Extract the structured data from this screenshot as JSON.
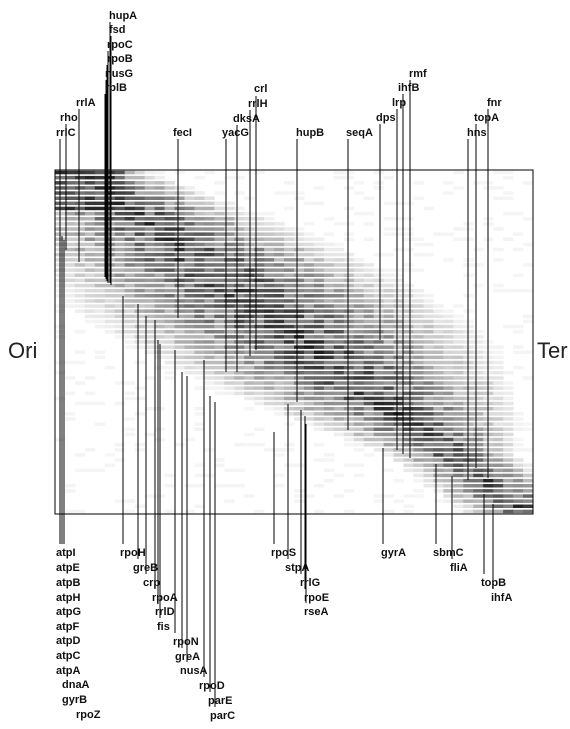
{
  "side_labels": {
    "left": "Ori",
    "right": "Ter"
  },
  "top_genes": [
    "hupA",
    "fsd",
    "rpoC",
    "rpoB",
    "nusG",
    "rplB",
    "rrlA",
    "rho",
    "rrlC",
    "fecI",
    "crl",
    "rrlH",
    "dksA",
    "yacG",
    "hupB",
    "seqA",
    "rmf",
    "ihfB",
    "lrp",
    "dps",
    "fnr",
    "topA",
    "hns"
  ],
  "bottom_genes": [
    "atpI",
    "atpE",
    "atpB",
    "atpH",
    "atpG",
    "atpF",
    "atpD",
    "atpC",
    "atpA",
    "dnaA",
    "gyrB",
    "rpoZ",
    "rpoH",
    "greB",
    "crp",
    "rpoA",
    "rrlD",
    "fis",
    "rpoN",
    "greA",
    "nusA",
    "rpoD",
    "parE",
    "parC",
    "rpoS",
    "stpA",
    "rrlG",
    "rpoE",
    "rseA",
    "gyrA",
    "sbmC",
    "fliA",
    "topB",
    "ihfA"
  ],
  "colors": {
    "ink": "#000000",
    "frame": "#000000",
    "background": "#ffffff"
  },
  "heatmap": {
    "rows": 67,
    "gradient": "white-to-black intensity"
  }
}
